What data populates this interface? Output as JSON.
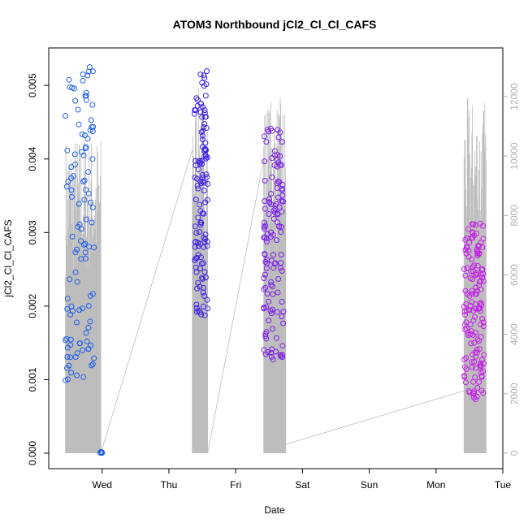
{
  "chart_data": {
    "type": "scatter",
    "title": "ATOM3 Northbound jCl2_Cl_Cl_CAFS",
    "xlabel": "Date",
    "ylabel": "jCl2_Cl_Cl_CAFS",
    "x_unit": "days",
    "x_ticks": [
      {
        "label": "Wed",
        "value": 1
      },
      {
        "label": "Thu",
        "value": 2
      },
      {
        "label": "Fri",
        "value": 3
      },
      {
        "label": "Sat",
        "value": 4
      },
      {
        "label": "Sun",
        "value": 5
      },
      {
        "label": "Mon",
        "value": 6
      },
      {
        "label": "Tue",
        "value": 7
      }
    ],
    "xlim": [
      0.2,
      7
    ],
    "y_ticks": [
      "0.000",
      "0.001",
      "0.002",
      "0.003",
      "0.004",
      "0.005"
    ],
    "ylim": [
      0,
      0.0053
    ],
    "y2_ticks": [
      "0",
      "2000",
      "4000",
      "6000",
      "8000",
      "10000",
      "12000"
    ],
    "y2lim": [
      0,
      12000
    ],
    "grid": false,
    "legend": "none",
    "colors": {
      "point_start": "#1f5ee8",
      "point_mid": "#3a1ee8",
      "point_end": "#e81ee8",
      "altitude_line": "#bdbdbd",
      "axis": "#000000",
      "y2_axis": "#b0b0b0"
    },
    "series": [
      {
        "marker": "open-circle",
        "segments": [
          {
            "x_range": [
              0.45,
              0.88
            ],
            "y_range": [
              0.0002,
              0.0053
            ],
            "n": 110,
            "color": "#1f5ee8"
          },
          {
            "x_range": [
              0.97,
              1.0
            ],
            "y_range": [
              0.0,
              2e-05
            ],
            "n": 8,
            "color": "#1f5ee8"
          },
          {
            "x_range": [
              2.38,
              2.58
            ],
            "y_range": [
              0.00125,
              0.0052
            ],
            "n": 120,
            "color": "#3a1ee8"
          },
          {
            "x_range": [
              3.42,
              3.72
            ],
            "y_range": [
              0.0007,
              0.0045
            ],
            "n": 130,
            "color": "#7a1ee8"
          },
          {
            "x_range": [
              6.42,
              6.72
            ],
            "y_range": [
              0.0003,
              0.00315
            ],
            "n": 150,
            "color": "#c41ee8"
          }
        ]
      },
      {
        "axis": "right",
        "style": "line",
        "segments": [
          {
            "x_range": [
              0.45,
              0.98
            ],
            "y_range": [
              0,
              10800
            ]
          },
          {
            "x_range": [
              0.98,
              2.35
            ],
            "y_range": [
              0,
              10200
            ],
            "style": "transit"
          },
          {
            "x_range": [
              2.35,
              2.58
            ],
            "y_range": [
              0,
              12300
            ]
          },
          {
            "x_range": [
              2.58,
              3.42
            ],
            "y_range": [
              0,
              9900
            ],
            "style": "transit"
          },
          {
            "x_range": [
              3.42,
              3.75
            ],
            "y_range": [
              0,
              12000
            ]
          },
          {
            "x_range": [
              3.75,
              6.42
            ],
            "y_range": [
              300,
              2100
            ],
            "style": "transit"
          },
          {
            "x_range": [
              6.42,
              6.75
            ],
            "y_range": [
              0,
              12000
            ]
          }
        ]
      }
    ]
  }
}
